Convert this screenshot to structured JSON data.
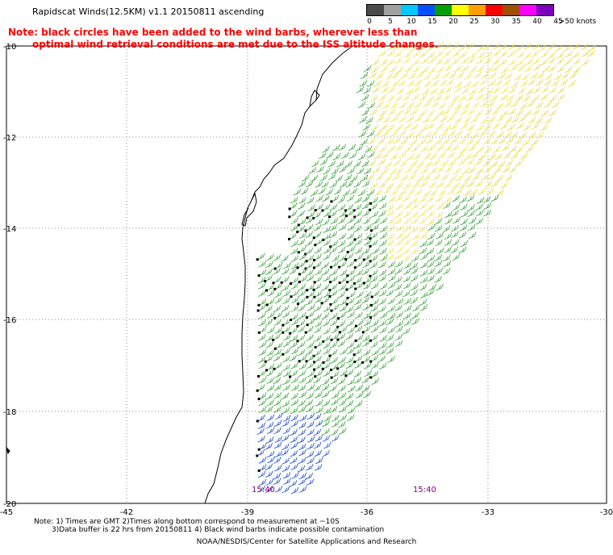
{
  "header": {
    "title": "Rapidscat Winds(12.5KM) v1.1 20150811 ascending",
    "note_line1": "Note: black circles have been added to the wind barbs, wherever less than",
    "note_line2": "optimal wind retrieval conditions are met due to the ISS altitude changes."
  },
  "legend": {
    "labels": [
      "0",
      "5",
      "10",
      "15",
      "20",
      "25",
      "30",
      "35",
      "40",
      "45",
      ">50 knots"
    ],
    "colors": [
      "#4a4a4a",
      "#a0a0a0",
      "#00c8ff",
      "#0050ff",
      "#00a000",
      "#ffff00",
      "#ffa000",
      "#ff0000",
      "#a05000",
      "#ff00ff",
      "#8000c0"
    ]
  },
  "axes": {
    "lon_labels": [
      "-45",
      "-42",
      "-39",
      "-36",
      "-33",
      "-30"
    ],
    "lat_labels": [
      "-10",
      "-12",
      "-14",
      "-16",
      "-18",
      "-20"
    ]
  },
  "pass_times": [
    "15:40",
    "15:40"
  ],
  "footer": {
    "line1": "Note: 1) Times are GMT 2)Times along bottom correspond to measurement at ~10S",
    "line2": "3)Data buffer is 22 hrs from 20150811 4) Black wind barbs indicate possible contamination",
    "credit": "NOAA/NESDIS/Center for Satellite Applications and Research"
  }
}
